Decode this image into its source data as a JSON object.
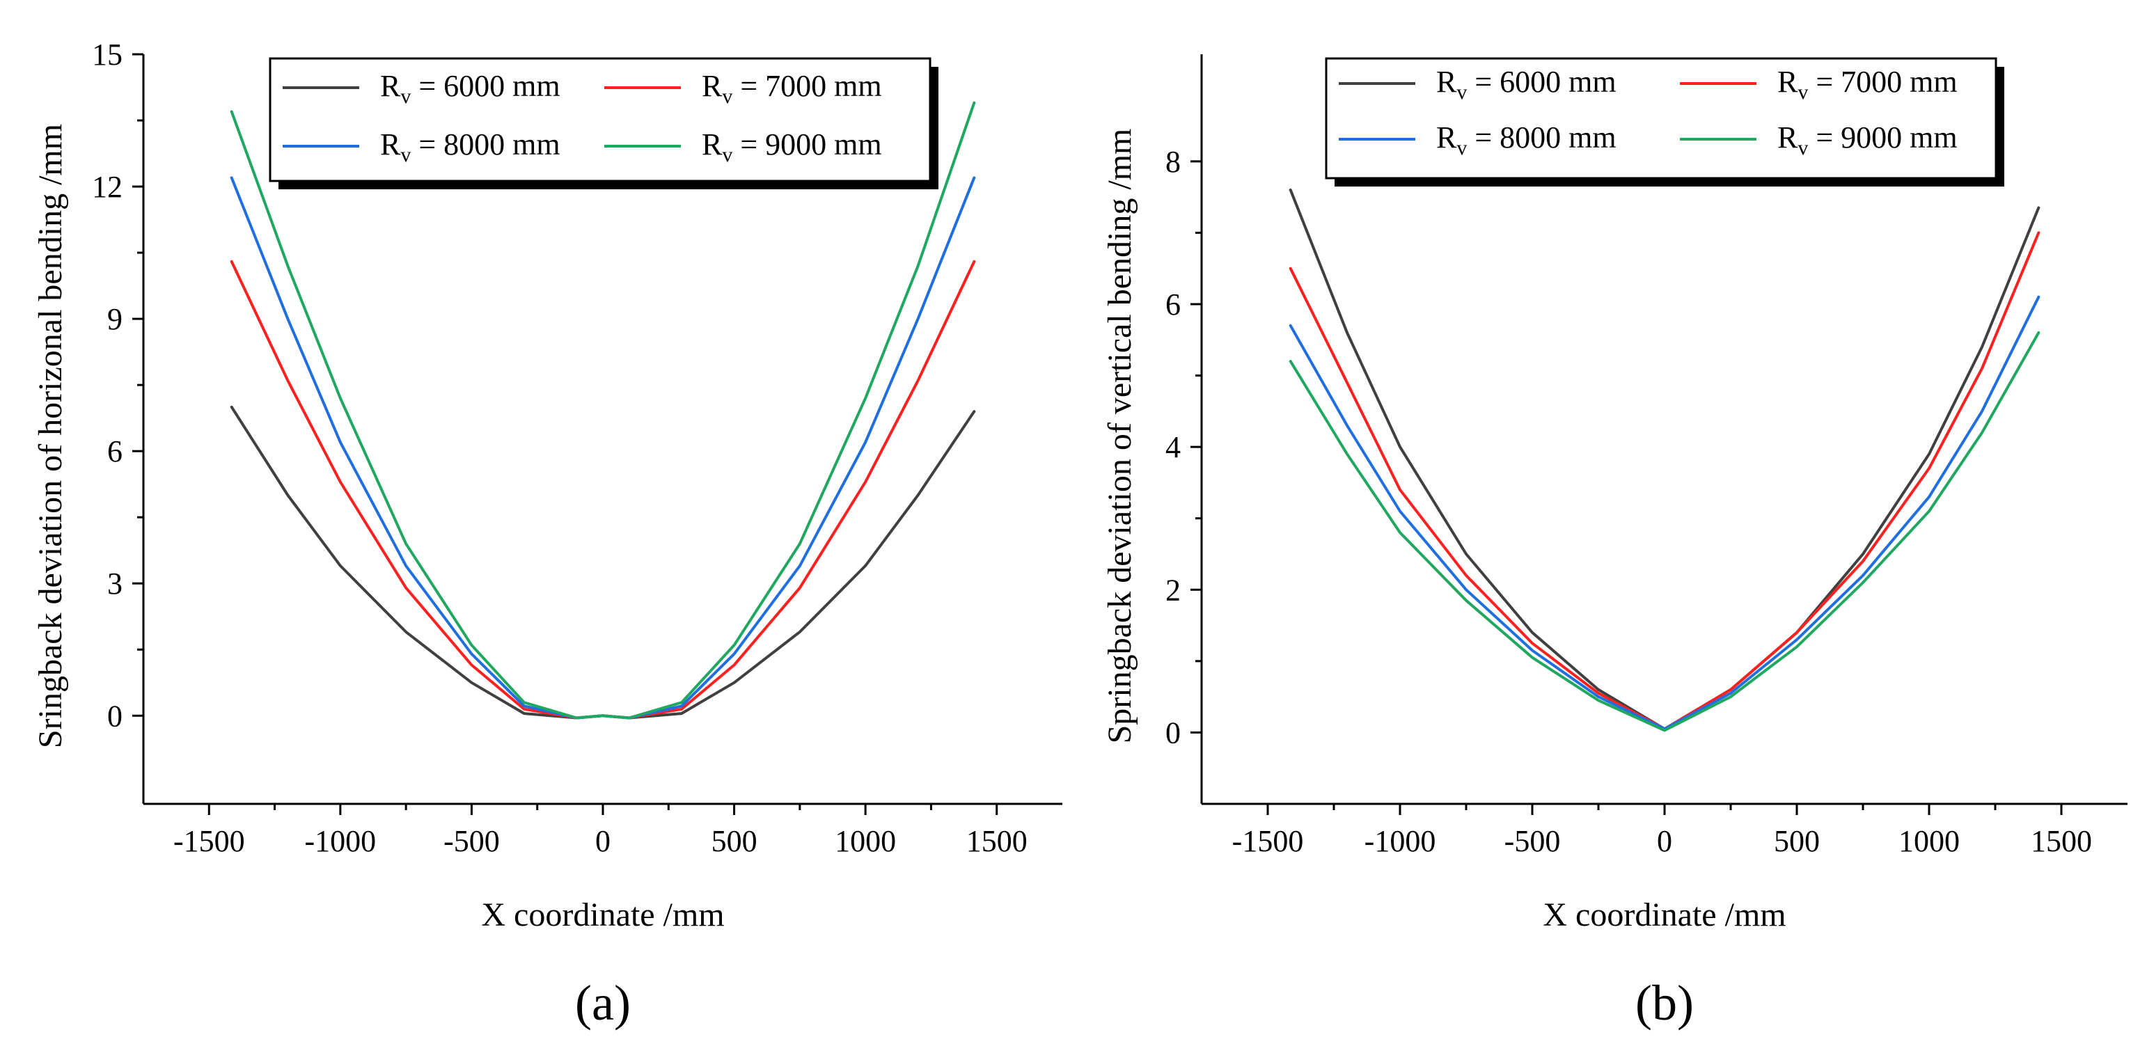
{
  "chart_data": [
    {
      "type": "line",
      "panel_label": "(a)",
      "xlabel": "X coordinate /mm",
      "ylabel": "Sringback deviation of horizonal bending /mm",
      "xlim": [
        -1750,
        1750
      ],
      "ylim": [
        -2,
        15
      ],
      "xticks": [
        -1500,
        -1000,
        -500,
        0,
        500,
        1000,
        1500
      ],
      "yticks": [
        0,
        3,
        6,
        9,
        12,
        15
      ],
      "grid": false,
      "legend_position": "top-right",
      "legend_columns": 2,
      "series": [
        {
          "name": "6000",
          "color": "#404040",
          "x": [
            -1414,
            -1200,
            -1000,
            -750,
            -500,
            -300,
            -100,
            0,
            100,
            300,
            500,
            750,
            1000,
            1200,
            1414
          ],
          "y": [
            7.0,
            5.0,
            3.4,
            1.9,
            0.75,
            0.05,
            -0.05,
            0.0,
            -0.05,
            0.05,
            0.75,
            1.9,
            3.4,
            5.0,
            6.9
          ]
        },
        {
          "name": "7000",
          "color": "#ff2020",
          "x": [
            -1414,
            -1200,
            -1000,
            -750,
            -500,
            -300,
            -100,
            0,
            100,
            300,
            500,
            750,
            1000,
            1200,
            1414
          ],
          "y": [
            10.3,
            7.6,
            5.3,
            2.9,
            1.15,
            0.15,
            -0.05,
            0.0,
            -0.05,
            0.15,
            1.15,
            2.9,
            5.3,
            7.6,
            10.3
          ]
        },
        {
          "name": "8000",
          "color": "#1f6fe0",
          "x": [
            -1414,
            -1200,
            -1000,
            -750,
            -500,
            -300,
            -100,
            0,
            100,
            300,
            500,
            750,
            1000,
            1200,
            1414
          ],
          "y": [
            12.2,
            9.0,
            6.2,
            3.4,
            1.4,
            0.22,
            -0.05,
            0.0,
            -0.05,
            0.22,
            1.4,
            3.4,
            6.2,
            9.0,
            12.2
          ]
        },
        {
          "name": "9000",
          "color": "#20a860",
          "x": [
            -1414,
            -1200,
            -1000,
            -750,
            -500,
            -300,
            -100,
            0,
            100,
            300,
            500,
            750,
            1000,
            1200,
            1414
          ],
          "y": [
            13.7,
            10.2,
            7.2,
            3.9,
            1.6,
            0.3,
            -0.05,
            0.0,
            -0.05,
            0.3,
            1.6,
            3.9,
            7.2,
            10.2,
            13.9
          ]
        }
      ]
    },
    {
      "type": "line",
      "panel_label": "(b)",
      "xlabel": "X coordinate /mm",
      "ylabel": "Springback deviation of vertical bending /mm",
      "xlim": [
        -1750,
        1750
      ],
      "ylim": [
        -1,
        9.5
      ],
      "xticks": [
        -1500,
        -1000,
        -500,
        0,
        500,
        1000,
        1500
      ],
      "yticks": [
        0,
        2,
        4,
        6,
        8
      ],
      "grid": false,
      "legend_position": "top",
      "legend_columns": 2,
      "series": [
        {
          "name": "6000",
          "color": "#404040",
          "x": [
            -1414,
            -1200,
            -1000,
            -750,
            -500,
            -250,
            0,
            250,
            500,
            750,
            1000,
            1200,
            1414
          ],
          "y": [
            7.6,
            5.6,
            4.0,
            2.5,
            1.4,
            0.6,
            0.05,
            0.6,
            1.4,
            2.5,
            3.9,
            5.4,
            7.35
          ]
        },
        {
          "name": "7000",
          "color": "#ff2020",
          "x": [
            -1414,
            -1200,
            -1000,
            -750,
            -500,
            -250,
            0,
            250,
            500,
            750,
            1000,
            1200,
            1414
          ],
          "y": [
            6.5,
            4.9,
            3.4,
            2.2,
            1.25,
            0.55,
            0.05,
            0.6,
            1.4,
            2.4,
            3.7,
            5.1,
            7.0
          ]
        },
        {
          "name": "8000",
          "color": "#1f6fe0",
          "x": [
            -1414,
            -1200,
            -1000,
            -750,
            -500,
            -250,
            0,
            250,
            500,
            750,
            1000,
            1200,
            1414
          ],
          "y": [
            5.7,
            4.3,
            3.1,
            2.0,
            1.15,
            0.5,
            0.05,
            0.55,
            1.3,
            2.2,
            3.3,
            4.5,
            6.1
          ]
        },
        {
          "name": "9000",
          "color": "#20a860",
          "x": [
            -1414,
            -1200,
            -1000,
            -750,
            -500,
            -250,
            0,
            250,
            500,
            750,
            1000,
            1200,
            1414
          ],
          "y": [
            5.2,
            3.9,
            2.8,
            1.85,
            1.05,
            0.45,
            0.03,
            0.5,
            1.2,
            2.1,
            3.1,
            4.2,
            5.6
          ]
        }
      ]
    }
  ],
  "legend": {
    "prefix": "R",
    "subscript": "v",
    "equals": " = ",
    "unit": " mm"
  }
}
